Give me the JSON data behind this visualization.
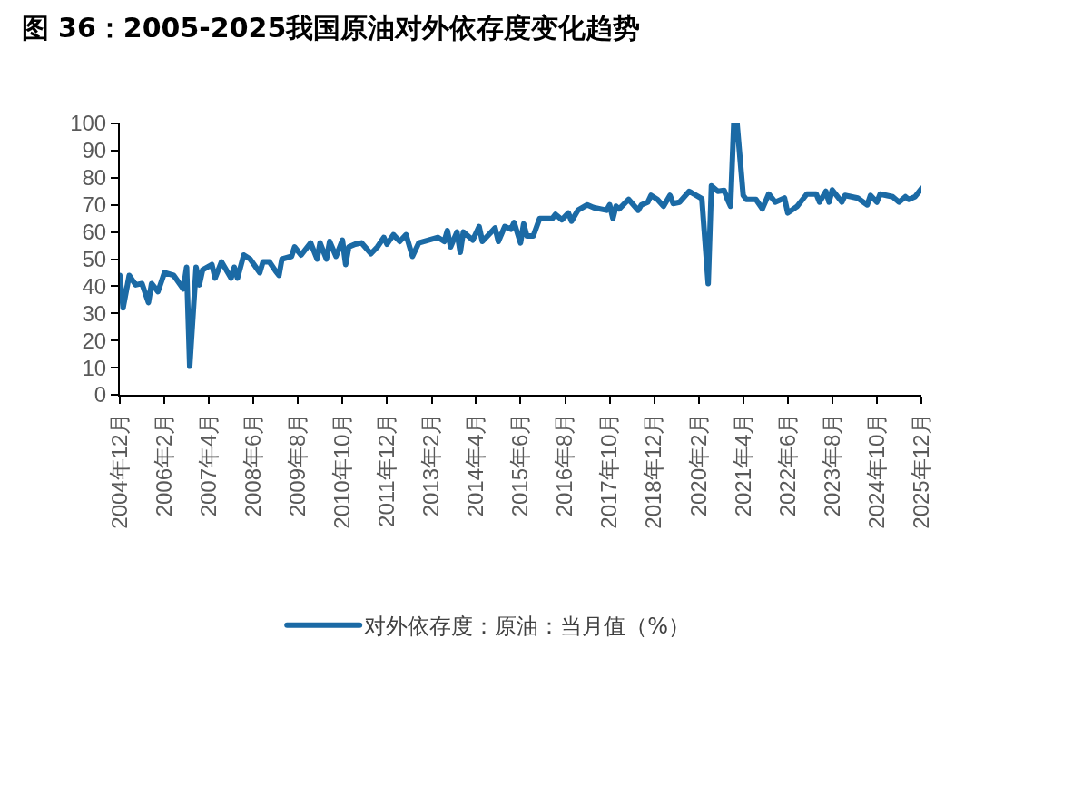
{
  "chart_data": {
    "type": "line",
    "title": "图 36：2005-2025我国原油对外依存度变化趋势",
    "x": [
      "2004-12",
      "2005-01",
      "2005-03",
      "2005-05",
      "2005-07",
      "2005-09",
      "2005-10",
      "2005-12",
      "2006-02",
      "2006-05",
      "2006-08",
      "2006-09",
      "2006-10",
      "2006-12",
      "2007-01",
      "2007-02",
      "2007-05",
      "2007-06",
      "2007-08",
      "2007-11",
      "2007-12",
      "2008-01",
      "2008-03",
      "2008-05",
      "2008-08",
      "2008-09",
      "2008-11",
      "2009-01",
      "2009-02",
      "2009-03",
      "2009-06",
      "2009-07",
      "2009-09",
      "2009-10",
      "2009-12",
      "2010-02",
      "2010-03",
      "2010-05",
      "2010-06",
      "2010-08",
      "2010-10",
      "2010-11",
      "2010-12",
      "2011-02",
      "2011-04",
      "2011-07",
      "2011-09",
      "2011-11",
      "2011-12",
      "2012-02",
      "2012-04",
      "2012-06",
      "2012-08",
      "2012-10",
      "2013-04",
      "2013-06",
      "2013-07",
      "2013-08",
      "2013-10",
      "2013-11",
      "2013-12",
      "2014-03",
      "2014-05",
      "2014-06",
      "2014-10",
      "2014-11",
      "2015-01",
      "2015-03",
      "2015-04",
      "2015-06",
      "2015-07",
      "2015-08",
      "2015-10",
      "2015-12",
      "2016-04",
      "2016-05",
      "2016-07",
      "2016-09",
      "2016-10",
      "2016-12",
      "2017-03",
      "2017-05",
      "2017-09",
      "2017-10",
      "2017-11",
      "2017-12",
      "2018-01",
      "2018-04",
      "2018-07",
      "2018-08",
      "2018-10",
      "2018-11",
      "2019-01",
      "2019-03",
      "2019-05",
      "2019-06",
      "2019-08",
      "2019-11",
      "2020-03",
      "2020-05",
      "2020-06",
      "2020-08",
      "2020-10",
      "2020-11",
      "2020-12",
      "2021-01",
      "2021-02",
      "2021-04",
      "2021-05",
      "2021-08",
      "2021-10",
      "2021-12",
      "2022-02",
      "2022-05",
      "2022-06",
      "2022-09",
      "2022-12",
      "2023-03",
      "2023-04",
      "2023-06",
      "2023-07",
      "2023-08",
      "2023-11",
      "2023-12",
      "2024-04",
      "2024-07",
      "2024-08",
      "2024-10",
      "2024-11",
      "2025-03",
      "2025-05",
      "2025-07",
      "2025-08",
      "2025-10",
      "2025-12"
    ],
    "series": [
      {
        "name": "对外依存度：原油：当月值（%）",
        "color": "#1b6aa5",
        "values": [
          44,
          32,
          44,
          40.5,
          41,
          34,
          41,
          38,
          45,
          44,
          39,
          47,
          10.5,
          47,
          40.5,
          46,
          48,
          43,
          49,
          43,
          47,
          43,
          51.5,
          50,
          45,
          49,
          49,
          45.5,
          44,
          50,
          51,
          54.5,
          51.5,
          53,
          56,
          50,
          56,
          50,
          56.5,
          51,
          57,
          48,
          54.5,
          55.5,
          56,
          52,
          54.5,
          58,
          55.5,
          59,
          56.5,
          59,
          51,
          56,
          58,
          56.5,
          60.5,
          54.5,
          60,
          52.5,
          60,
          57,
          62,
          56.5,
          61.5,
          56.5,
          62,
          61,
          63.5,
          56,
          63,
          58.5,
          58.5,
          65,
          65,
          66.5,
          64.5,
          67,
          64,
          68,
          70,
          69,
          68,
          70,
          65,
          69.5,
          68.5,
          72,
          68,
          70,
          71,
          73.5,
          72,
          69.5,
          73.5,
          70.5,
          71,
          75,
          72.3,
          41,
          77,
          75,
          75.3,
          72,
          69.5,
          100,
          100,
          73.5,
          72,
          72,
          68.5,
          74,
          71,
          72.5,
          67,
          69.5,
          74,
          74,
          71,
          75,
          71,
          75.5,
          71,
          73.5,
          72.5,
          70,
          73.5,
          71,
          74,
          73,
          71,
          73,
          72,
          73,
          76
        ]
      }
    ],
    "xlim": [
      "2004-12",
      "2025-12"
    ],
    "xticks": [
      {
        "value": "2004-12",
        "label": "2004年12月"
      },
      {
        "value": "2006-02",
        "label": "2006年2月"
      },
      {
        "value": "2007-04",
        "label": "2007年4月"
      },
      {
        "value": "2008-06",
        "label": "2008年6月"
      },
      {
        "value": "2009-08",
        "label": "2009年8月"
      },
      {
        "value": "2010-10",
        "label": "2010年10月"
      },
      {
        "value": "2011-12",
        "label": "2011年12月"
      },
      {
        "value": "2013-02",
        "label": "2013年2月"
      },
      {
        "value": "2014-04",
        "label": "2014年4月"
      },
      {
        "value": "2015-06",
        "label": "2015年6月"
      },
      {
        "value": "2016-08",
        "label": "2016年8月"
      },
      {
        "value": "2017-10",
        "label": "2017年10月"
      },
      {
        "value": "2018-12",
        "label": "2018年12月"
      },
      {
        "value": "2020-02",
        "label": "2020年2月"
      },
      {
        "value": "2021-04",
        "label": "2021年4月"
      },
      {
        "value": "2022-06",
        "label": "2022年6月"
      },
      {
        "value": "2023-08",
        "label": "2023年8月"
      },
      {
        "value": "2024-10",
        "label": "2024年10月"
      },
      {
        "value": "2025-12",
        "label": "2025年12月"
      }
    ],
    "ylim": [
      0,
      100
    ],
    "yticks": [
      0,
      10,
      20,
      30,
      40,
      50,
      60,
      70,
      80,
      90,
      100
    ],
    "grid": false,
    "legend": "bottom",
    "marker": "none",
    "line_style": "solid"
  }
}
